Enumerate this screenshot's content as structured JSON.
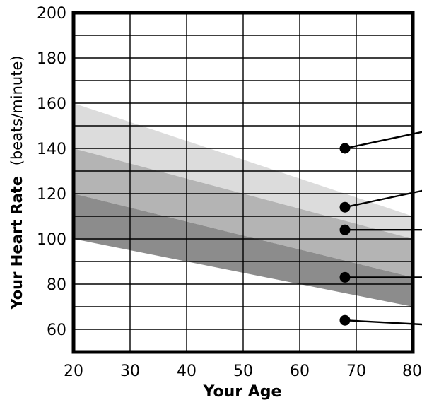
{
  "chart_data": {
    "type": "area",
    "title": "",
    "xlabel": "Your Age",
    "ylabel_bold": "Your Heart Rate",
    "ylabel_unit": "(beats/minute)",
    "xlim": [
      20,
      80
    ],
    "ylim": [
      50,
      200
    ],
    "x_ticks": [
      20,
      30,
      40,
      50,
      60,
      70,
      80
    ],
    "y_ticks": [
      60,
      80,
      100,
      120,
      140,
      160,
      180,
      200
    ],
    "x_ticks_text": [
      "20",
      "30",
      "40",
      "50",
      "60",
      "70",
      "80"
    ],
    "y_ticks_text": [
      "60",
      "80",
      "100",
      "120",
      "140",
      "160",
      "180",
      "200"
    ],
    "grid": true,
    "grid_x_step": 10,
    "grid_y_step": 10,
    "bands": [
      {
        "lower": [
          [
            20,
            140
          ],
          [
            80,
            100
          ]
        ],
        "upper": [
          [
            20,
            160
          ],
          [
            80,
            110
          ]
        ],
        "color": "#dcdcdc"
      },
      {
        "lower": [
          [
            20,
            120
          ],
          [
            80,
            83
          ]
        ],
        "upper": [
          [
            20,
            140
          ],
          [
            80,
            100
          ]
        ],
        "color": "#b4b4b4"
      },
      {
        "lower": [
          [
            20,
            100
          ],
          [
            80,
            70
          ]
        ],
        "upper": [
          [
            20,
            120
          ],
          [
            80,
            83
          ]
        ],
        "color": "#8c8c8c"
      }
    ],
    "markers": [
      {
        "x": 68,
        "y": 140,
        "leader_to": [
          83,
          148
        ]
      },
      {
        "x": 68,
        "y": 114,
        "leader_to": [
          83,
          122
        ]
      },
      {
        "x": 68,
        "y": 104,
        "leader_to": [
          83,
          104
        ]
      },
      {
        "x": 68,
        "y": 83,
        "leader_to": [
          83,
          83
        ]
      },
      {
        "x": 68,
        "y": 64,
        "leader_to": [
          83,
          62
        ]
      }
    ]
  }
}
